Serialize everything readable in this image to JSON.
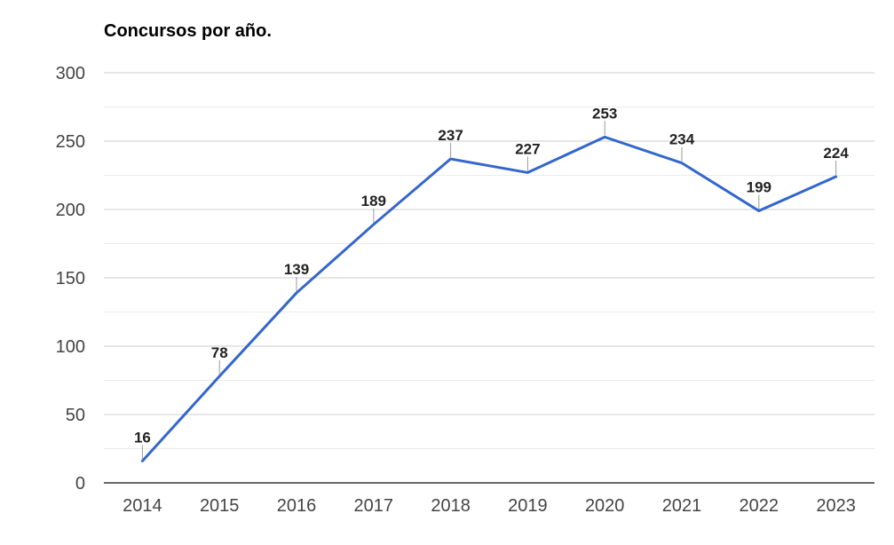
{
  "chart_data": {
    "type": "line",
    "title": "Concursos por año.",
    "xlabel": "",
    "ylabel": "",
    "categories": [
      "2014",
      "2015",
      "2016",
      "2017",
      "2018",
      "2019",
      "2020",
      "2021",
      "2022",
      "2023"
    ],
    "series": [
      {
        "values": [
          16,
          78,
          139,
          189,
          237,
          227,
          253,
          234,
          199,
          224
        ]
      }
    ],
    "data_labels": [
      "16",
      "78",
      "139",
      "189",
      "237",
      "227",
      "253",
      "234",
      "199",
      "224"
    ],
    "ylim": [
      0,
      300
    ],
    "yticks": [
      "0",
      "50",
      "100",
      "150",
      "200",
      "250",
      "300"
    ],
    "grid": true,
    "legend": "none",
    "colors": {
      "line": "#3366cc",
      "grid": "#cccccc",
      "minor_grid": "#ebebeb",
      "axis": "#333333"
    }
  }
}
